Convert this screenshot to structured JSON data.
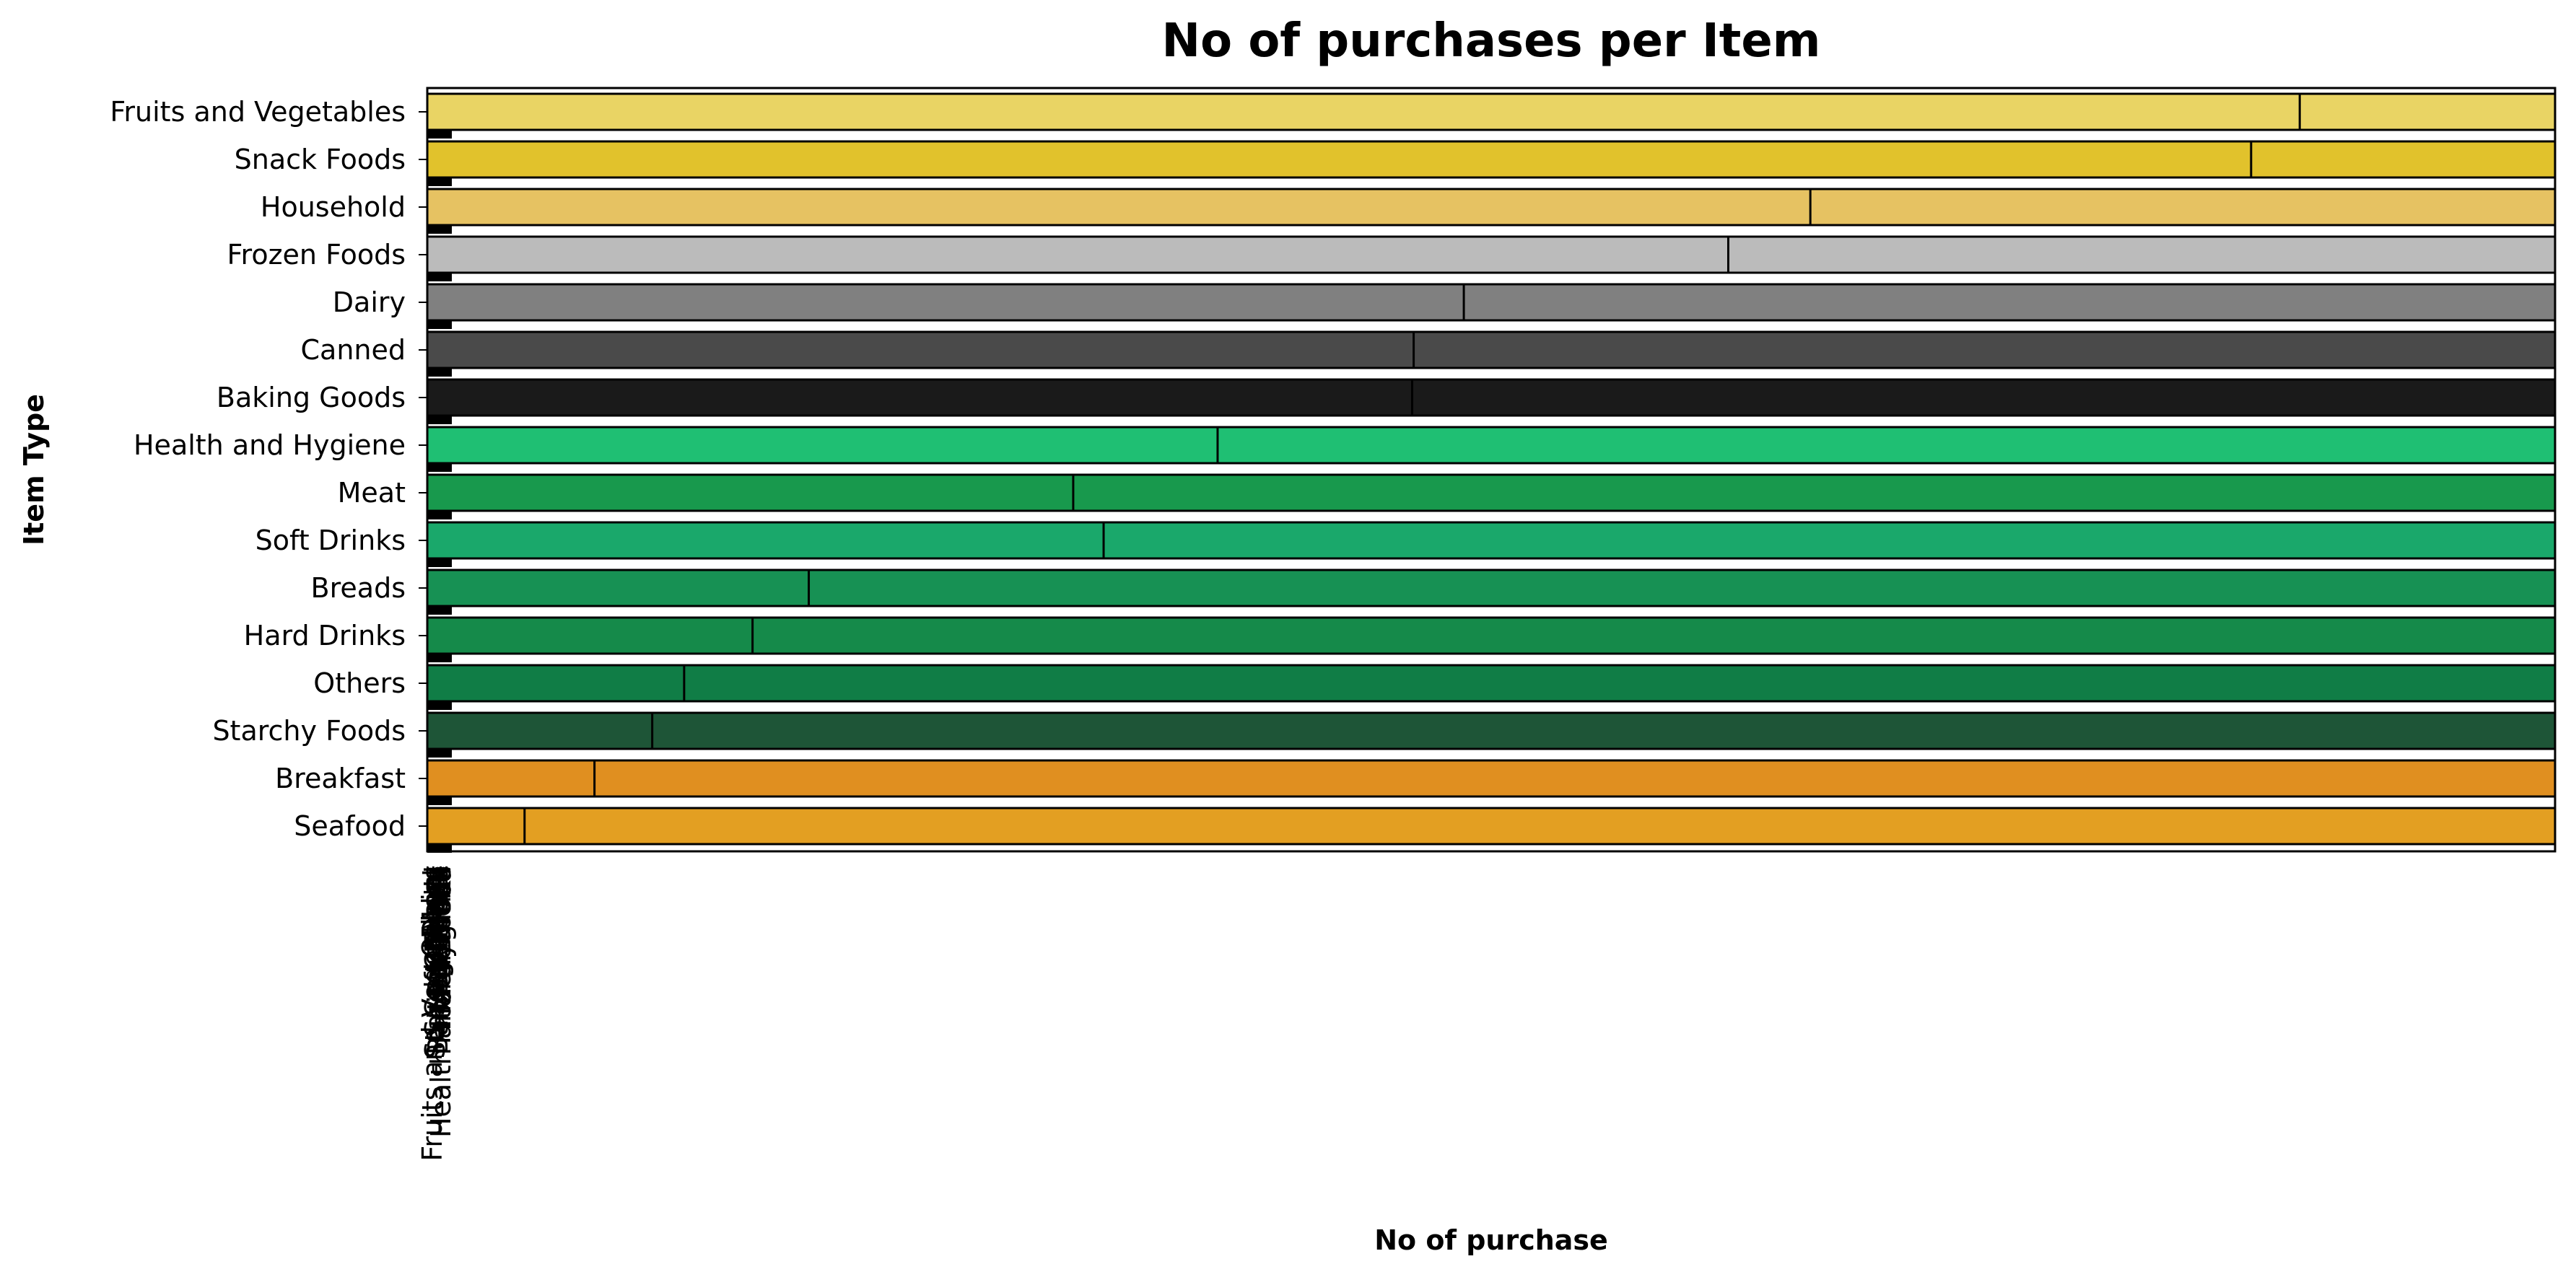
{
  "chart_data": {
    "type": "bar",
    "orientation": "horizontal",
    "title": "No of purchases per Item",
    "xlabel": "No of purchase",
    "ylabel": "Item Type",
    "categories": [
      "Fruits and Vegetables",
      "Snack Foods",
      "Household",
      "Frozen Foods",
      "Dairy",
      "Canned",
      "Baking Goods",
      "Health and Hygiene",
      "Meat",
      "Soft Drinks",
      "Breads",
      "Hard Drinks",
      "Others",
      "Starchy Foods",
      "Breakfast",
      "Seafood"
    ],
    "values": [
      1232,
      1200,
      910,
      856,
      682,
      649,
      648,
      520,
      425,
      445,
      251,
      214,
      169,
      148,
      110,
      64
    ],
    "colors": [
      "#e9d464",
      "#e1c22c",
      "#e6c262",
      "#bbbbbb",
      "#808080",
      "#4a4a4a",
      "#1a1a1a",
      "#1fbf73",
      "#18994d",
      "#1aa86b",
      "#179154",
      "#158a4a",
      "#107d46",
      "#1e5537",
      "#e08f20",
      "#e39f22"
    ],
    "xlim": [
      0,
      1400
    ],
    "grid": false,
    "legend": "none"
  }
}
